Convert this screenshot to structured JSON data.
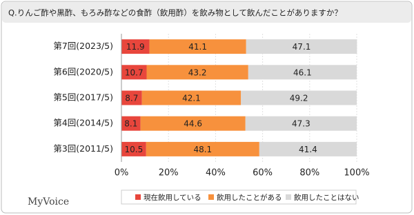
{
  "chart_data": {
    "type": "stacked-bar-horizontal",
    "title": "Q.りんご酢や黒酢、もろみ酢などの食酢（飲用酢）を飲み物として飲んだことがありますか？",
    "categories": [
      "第7回(2023/5)",
      "第6回(2020/5)",
      "第5回(2017/5)",
      "第4回(2014/5)",
      "第3回(2011/5)"
    ],
    "series": [
      {
        "name": "現在飲用している",
        "color": "#e8463c",
        "values": [
          11.9,
          10.7,
          8.7,
          8.1,
          10.5
        ]
      },
      {
        "name": "飲用したことがある",
        "color": "#f7913d",
        "values": [
          41.1,
          43.2,
          42.1,
          44.6,
          48.1
        ]
      },
      {
        "name": "飲用したことはない",
        "color": "#d9d9d9",
        "values": [
          47.1,
          46.1,
          49.2,
          47.3,
          41.4
        ]
      }
    ],
    "xlim": [
      0,
      100
    ],
    "xticks": [
      {
        "value": 0,
        "label": "0%"
      },
      {
        "value": 20,
        "label": "20%"
      },
      {
        "value": 40,
        "label": "40%"
      },
      {
        "value": 60,
        "label": "60%"
      },
      {
        "value": 80,
        "label": "80%"
      },
      {
        "value": 100,
        "label": "100%"
      }
    ],
    "grid": true,
    "legend": "bottom",
    "logo": "MyVoice"
  }
}
